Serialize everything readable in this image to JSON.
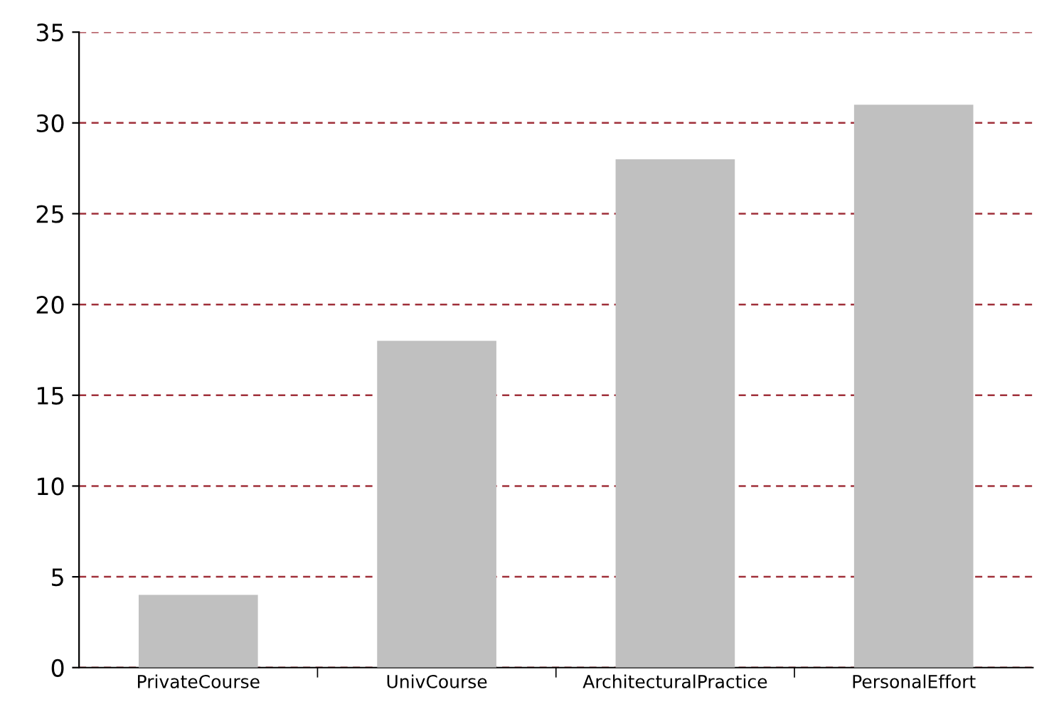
{
  "chart_data": {
    "type": "bar",
    "categories": [
      "PrivateCourse",
      "UnivCourse",
      "ArchitecturalPractice",
      "PersonalEffort"
    ],
    "values": [
      4,
      18,
      28,
      31
    ],
    "color": "#c0c0c0",
    "ylim": [
      0,
      35
    ],
    "yticks": [
      0,
      5,
      10,
      15,
      20,
      25,
      30,
      35
    ],
    "grid": "y",
    "line_style": "dashed"
  }
}
